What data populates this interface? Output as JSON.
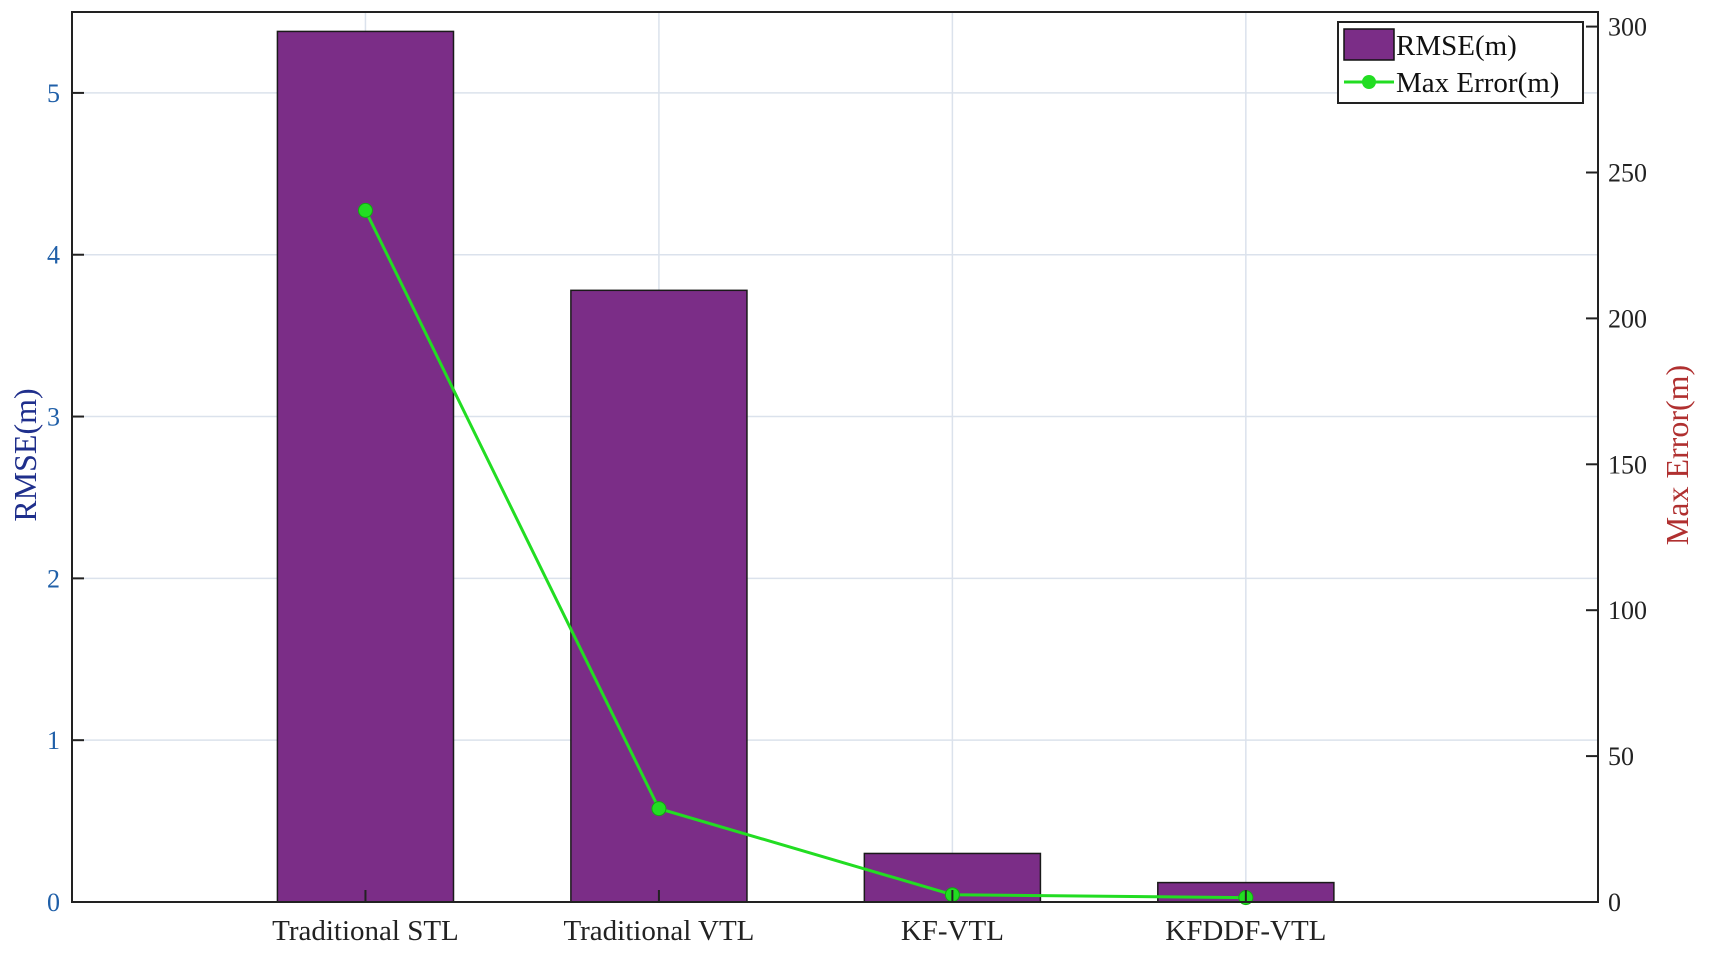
{
  "chart_data": {
    "type": "bar",
    "categories": [
      "Traditional STL",
      "Traditional VTL",
      "KF-VTL",
      "KFDDF-VTL"
    ],
    "series": [
      {
        "name": "RMSE(m)",
        "type": "bar",
        "axis": "left",
        "values": [
          5.38,
          3.78,
          0.3,
          0.12
        ]
      },
      {
        "name": "Max Error(m)",
        "type": "line",
        "axis": "right",
        "values": [
          237,
          32,
          2.5,
          1.5
        ]
      }
    ],
    "ylabel": "RMSE(m)",
    "y2label": "Max Error(m)",
    "ylim": [
      0,
      5.5
    ],
    "y2lim": [
      0,
      305
    ],
    "yticks": [
      0,
      1,
      2,
      3,
      4,
      5
    ],
    "y2ticks": [
      0,
      50,
      100,
      150,
      200,
      250,
      300
    ],
    "grid": true,
    "legend": "top-right",
    "colors": {
      "bar": "#7b2d87",
      "line": "#22dd22",
      "left_axis": "#1f5fa8",
      "left_label": "#1f2f8c",
      "right_label": "#b03030",
      "grid": "#dbe2ec"
    }
  }
}
